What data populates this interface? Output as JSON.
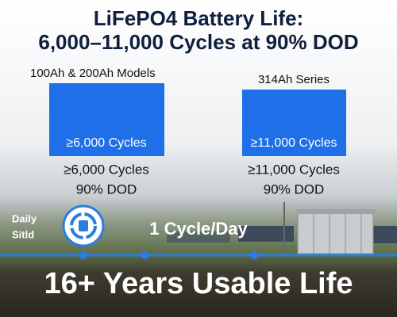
{
  "header": {
    "title_lines": [
      "LiFePO4 Battery Life:",
      "6,000–11,000 Cycles at 90% DOD"
    ]
  },
  "panels": [
    {
      "label": "100Ah & 200Ah Models",
      "bar_text": "≥6,000 Cycles",
      "cycles": "≥6,000 Cycles",
      "dod": "90% DOD"
    },
    {
      "label": "314Ah Series",
      "bar_text": "≥11,000 Cycles",
      "cycles": "≥11,000 Cycles",
      "dod": "90% DOD"
    }
  ],
  "timeline": {
    "side_label_lines": [
      "Daily",
      "Sitld"
    ],
    "label": "1 Cycle/Day"
  },
  "footer": {
    "text": "16+ Years Usable Life"
  }
}
